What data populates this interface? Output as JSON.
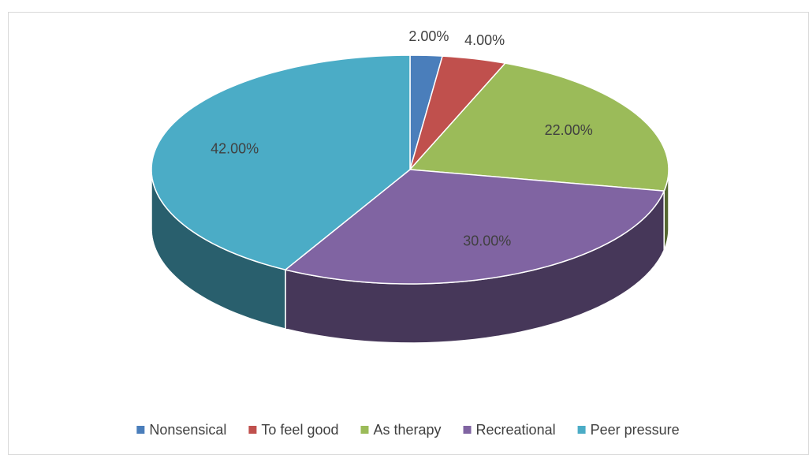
{
  "chart_data": {
    "type": "pie",
    "projection": "3d",
    "categories": [
      "Nonsensical",
      "To feel good",
      "As therapy",
      "Recreational",
      "Peer pressure"
    ],
    "values": [
      2,
      4,
      22,
      30,
      42
    ],
    "value_labels": [
      "2.00%",
      "4.00%",
      "22.00%",
      "30.00%",
      "42.00%"
    ],
    "colors": [
      "#4a7ebb",
      "#c0504d",
      "#9bbb59",
      "#8064a2",
      "#4bacc6"
    ],
    "legend": "bottom"
  }
}
